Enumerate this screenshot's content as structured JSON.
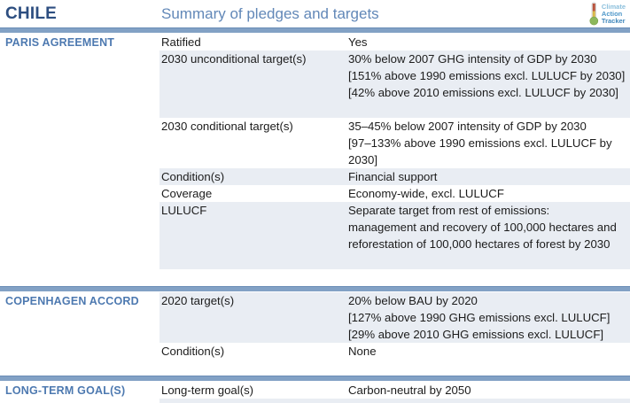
{
  "header": {
    "country": "CHILE",
    "title": "Summary of pledges and targets",
    "logo": [
      "Climate",
      "Action",
      "Tracker"
    ]
  },
  "colors": {
    "divider_bar": "#82a1c5",
    "shaded_row": "#e9edf3",
    "country_text": "#2d4e80",
    "title_text": "#6288b8",
    "section_label_text": "#4d79b0",
    "body_text": "#1c1c1c"
  },
  "sections": [
    {
      "label": "PARIS AGREEMENT",
      "rows": [
        {
          "attribute": "Ratified",
          "values": [
            "Yes"
          ],
          "shaded": false
        },
        {
          "attribute": "2030 unconditional target(s)",
          "values": [
            "30% below 2007 GHG intensity of GDP by 2030",
            "[151% above 1990 emissions excl. LULUCF by 2030]",
            "[42% above 2010 emissions excl. LULUCF by 2030]",
            ""
          ],
          "shaded": true
        },
        {
          "attribute": "2030 conditional target(s)",
          "values": [
            "35–45% below 2007 intensity of GDP by 2030",
            "[97–133% above 1990 emissions excl. LULUCF by",
            "2030]"
          ],
          "shaded": false
        },
        {
          "attribute": "Condition(s)",
          "values": [
            "Financial support"
          ],
          "shaded": true
        },
        {
          "attribute": "Coverage",
          "values": [
            "Economy-wide, excl. LULUCF"
          ],
          "shaded": false
        },
        {
          "attribute": "LULUCF",
          "values": [
            "Separate target from rest of emissions:",
            "management and recovery of 100,000 hectares and",
            "reforestation of 100,000 hectares of forest by 2030",
            ""
          ],
          "shaded": true
        }
      ]
    },
    {
      "label": "COPENHAGEN ACCORD",
      "rows": [
        {
          "attribute": "2020 target(s)",
          "values": [
            "20% below BAU by 2020",
            "[127% above 1990 GHG emissions excl. LULUCF]",
            "[29% above 2010 GHG emissions excl. LULUCF]"
          ],
          "shaded": true
        },
        {
          "attribute": "Condition(s)",
          "values": [
            "None"
          ],
          "shaded": false
        }
      ]
    },
    {
      "label": "LONG-TERM GOAL(S)",
      "rows": [
        {
          "attribute": "Long-term goal(s)",
          "values": [
            "Carbon-neutral by 2050"
          ],
          "shaded": false
        }
      ]
    }
  ]
}
